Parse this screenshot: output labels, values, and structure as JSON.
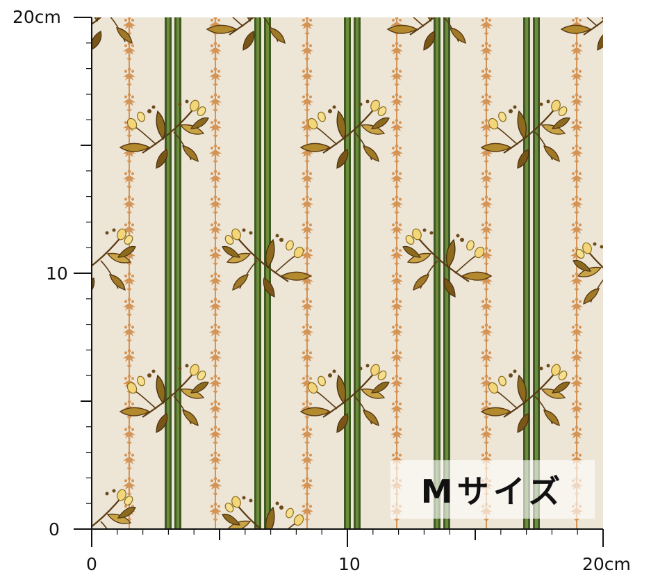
{
  "labels": {
    "y_top": "20cm",
    "y_mid": "10",
    "y_bottom": "0",
    "x_left": "0",
    "x_mid": "10",
    "x_right": "20cm",
    "size_badge": "Mサイズ"
  },
  "colors": {
    "background": "#ede5d6",
    "stripe_dark": "#3c5a22",
    "stripe_light": "#6f8c3d",
    "ornament": "#d49456",
    "leaf_brown": "#6b4a1a",
    "leaf_gold": "#b38a2e",
    "bud_yellow": "#f3d67a",
    "axis": "#111111"
  },
  "ruler": {
    "unit": "cm",
    "range": [
      0,
      20
    ],
    "major_step": 5,
    "minor_step": 1
  },
  "icons": [
    "floral-sprig-icon",
    "ornament-vine-icon"
  ]
}
